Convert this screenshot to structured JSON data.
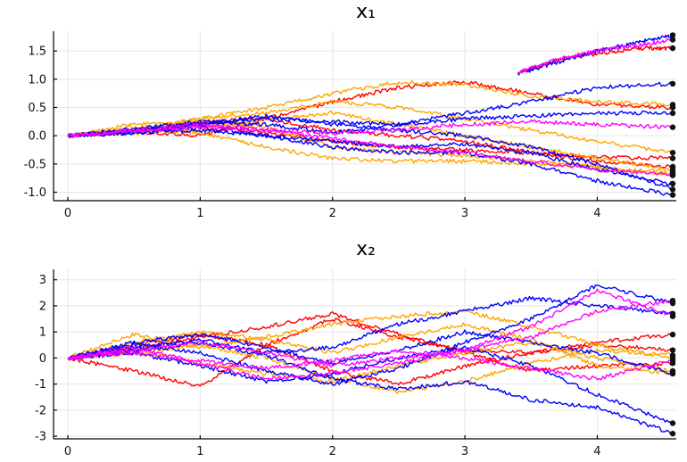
{
  "chart_data": [
    {
      "type": "line",
      "title": "x₁",
      "xlim": [
        0,
        4.57
      ],
      "ylim": [
        -1.15,
        1.85
      ],
      "x_ticks": [
        "0",
        "1",
        "2",
        "3",
        "4"
      ],
      "y_ticks": [
        "-1.0",
        "-0.5",
        "0.0",
        "0.5",
        "1.0",
        "1.5"
      ],
      "grid": true,
      "legend": "none",
      "end_markers": true,
      "series_colors": [
        "#ff0000",
        "#ffa500",
        "#0000ff",
        "#ff00ff"
      ],
      "series": [
        {
          "color": "#ff0000",
          "x": [
            0,
            0.5,
            1,
            1.5,
            2,
            2.5,
            3,
            3.5,
            4,
            4.57
          ],
          "values": [
            0,
            0.08,
            0.0,
            0.3,
            0.6,
            0.85,
            0.95,
            0.75,
            0.55,
            0.5
          ]
        },
        {
          "color": "#ff0000",
          "x": [
            0,
            0.5,
            1,
            1.5,
            2,
            2.5,
            3,
            3.5,
            4,
            4.57
          ],
          "values": [
            0,
            0.1,
            0.2,
            0.05,
            -0.1,
            -0.2,
            -0.25,
            -0.3,
            -0.38,
            -0.4
          ]
        },
        {
          "color": "#ff0000",
          "x": [
            0,
            0.5,
            1,
            1.5,
            2,
            2.5,
            3,
            3.5,
            4,
            4.57
          ],
          "values": [
            0,
            0.05,
            0.25,
            0.3,
            0.1,
            0.0,
            -0.1,
            -0.3,
            -0.45,
            -0.55
          ]
        },
        {
          "color": "#ff0000",
          "x": [
            3.4,
            3.7,
            4,
            4.3,
            4.57
          ],
          "values": [
            1.1,
            1.35,
            1.45,
            1.55,
            1.55
          ]
        },
        {
          "color": "#ffa500",
          "x": [
            0,
            0.5,
            1,
            1.5,
            2,
            2.5,
            3,
            3.5,
            4,
            4.57
          ],
          "values": [
            0,
            0.2,
            0.25,
            0.15,
            -0.2,
            -0.3,
            -0.35,
            -0.45,
            -0.55,
            -0.7
          ]
        },
        {
          "color": "#ffa500",
          "x": [
            0,
            0.5,
            1,
            1.5,
            2,
            2.5,
            3,
            3.5,
            4,
            4.57
          ],
          "values": [
            0,
            0.1,
            0.3,
            0.5,
            0.75,
            0.95,
            0.9,
            0.7,
            0.6,
            0.55
          ]
        },
        {
          "color": "#ffa500",
          "x": [
            0,
            0.5,
            1,
            1.5,
            2,
            2.5,
            3,
            3.5,
            4,
            4.57
          ],
          "values": [
            0,
            0.05,
            0.1,
            0.3,
            0.4,
            0.2,
            0.0,
            -0.2,
            -0.4,
            -0.6
          ]
        },
        {
          "color": "#ffa500",
          "x": [
            0,
            0.5,
            1,
            1.5,
            2,
            2.5,
            3,
            3.5,
            4,
            4.57
          ],
          "values": [
            0,
            0.15,
            0.05,
            -0.2,
            -0.4,
            -0.45,
            -0.45,
            -0.5,
            -0.55,
            -0.65
          ]
        },
        {
          "color": "#ffa500",
          "x": [
            0,
            0.5,
            1,
            1.5,
            2,
            2.5,
            3,
            3.5,
            4,
            4.57
          ],
          "values": [
            0,
            0.1,
            0.3,
            0.4,
            0.6,
            0.5,
            0.3,
            0.1,
            -0.1,
            -0.3
          ]
        },
        {
          "color": "#0000ff",
          "x": [
            0,
            0.5,
            1,
            1.5,
            2,
            2.5,
            3,
            3.5,
            4,
            4.57
          ],
          "values": [
            0,
            0.08,
            0.2,
            0.35,
            0.2,
            0.1,
            0.0,
            -0.2,
            -0.5,
            -0.95
          ]
        },
        {
          "color": "#0000ff",
          "x": [
            0,
            0.5,
            1,
            1.5,
            2,
            2.5,
            3,
            3.5,
            4,
            4.57
          ],
          "values": [
            0,
            0.12,
            0.25,
            0.2,
            0.05,
            0.2,
            0.4,
            0.6,
            0.85,
            0.92
          ]
        },
        {
          "color": "#0000ff",
          "x": [
            0,
            0.5,
            1,
            1.5,
            2,
            2.5,
            3,
            3.5,
            4,
            4.57
          ],
          "values": [
            0,
            0.05,
            0.1,
            0.0,
            -0.2,
            -0.3,
            -0.3,
            -0.5,
            -0.8,
            -1.05
          ]
        },
        {
          "color": "#0000ff",
          "x": [
            0,
            0.5,
            1,
            1.5,
            2,
            2.5,
            3,
            3.5,
            4,
            4.57
          ],
          "values": [
            0,
            0.1,
            0.2,
            0.3,
            0.25,
            0.2,
            0.3,
            0.35,
            0.4,
            0.4
          ]
        },
        {
          "color": "#0000ff",
          "x": [
            3.4,
            3.7,
            4,
            4.3,
            4.57
          ],
          "values": [
            1.1,
            1.3,
            1.5,
            1.65,
            1.78
          ]
        },
        {
          "color": "#0000ff",
          "x": [
            0,
            0.5,
            1,
            1.5,
            2,
            2.5,
            3,
            3.5,
            4,
            4.57
          ],
          "values": [
            0,
            0.05,
            0.15,
            0.0,
            -0.1,
            -0.2,
            -0.15,
            -0.3,
            -0.6,
            -0.85
          ]
        },
        {
          "color": "#ff00ff",
          "x": [
            3.4,
            3.7,
            4,
            4.3,
            4.57
          ],
          "values": [
            1.12,
            1.35,
            1.5,
            1.6,
            1.7
          ]
        },
        {
          "color": "#ff00ff",
          "x": [
            0,
            0.5,
            1,
            1.5,
            2,
            2.5,
            3,
            3.5,
            4,
            4.57
          ],
          "values": [
            0,
            0.08,
            0.15,
            0.1,
            0.05,
            0.1,
            0.2,
            0.25,
            0.2,
            0.15
          ]
        },
        {
          "color": "#ff00ff",
          "x": [
            0,
            0.5,
            1,
            1.5,
            2,
            2.5,
            3,
            3.5,
            4,
            4.57
          ],
          "values": [
            0,
            0.1,
            0.2,
            0.1,
            -0.05,
            -0.2,
            -0.3,
            -0.45,
            -0.6,
            -0.7
          ]
        }
      ]
    },
    {
      "type": "line",
      "title": "x₂",
      "xlim": [
        0,
        4.57
      ],
      "ylim": [
        -3.1,
        3.4
      ],
      "x_ticks": [
        "0",
        "1",
        "2",
        "3",
        "4"
      ],
      "y_ticks": [
        "-3",
        "-2",
        "-1",
        "0",
        "1",
        "2",
        "3"
      ],
      "grid": true,
      "legend": "none",
      "end_markers": true,
      "series_colors": [
        "#ff0000",
        "#ffa500",
        "#0000ff",
        "#ff00ff"
      ],
      "series": [
        {
          "color": "#ff0000",
          "x": [
            0,
            0.5,
            1,
            1.5,
            2,
            2.5,
            3,
            3.5,
            4,
            4.57
          ],
          "values": [
            0,
            -0.5,
            -1.1,
            0.5,
            1.5,
            0.8,
            0.3,
            0.2,
            0.6,
            0.9
          ]
        },
        {
          "color": "#ff0000",
          "x": [
            0,
            0.5,
            1,
            1.5,
            2,
            2.5,
            3,
            3.5,
            4,
            4.57
          ],
          "values": [
            0,
            0.3,
            0.8,
            1.2,
            1.7,
            0.9,
            0.2,
            -0.5,
            -0.3,
            -0.2
          ]
        },
        {
          "color": "#ff0000",
          "x": [
            0,
            0.5,
            1,
            1.5,
            2,
            2.5,
            3,
            3.5,
            4,
            4.57
          ],
          "values": [
            0,
            0.5,
            0.9,
            0.5,
            -0.5,
            -1.0,
            -0.3,
            0.2,
            0.5,
            0.3
          ]
        },
        {
          "color": "#ffa500",
          "x": [
            0,
            0.5,
            1,
            1.5,
            2,
            2.5,
            3,
            3.5,
            4,
            4.57
          ],
          "values": [
            0,
            0.9,
            0.4,
            0.8,
            1.3,
            1.6,
            1.8,
            1.2,
            0.5,
            0.0
          ]
        },
        {
          "color": "#ffa500",
          "x": [
            0,
            0.5,
            1,
            1.5,
            2,
            2.5,
            3,
            3.5,
            4,
            4.57
          ],
          "values": [
            0,
            0.3,
            -0.2,
            -0.6,
            -0.9,
            -0.3,
            0.2,
            0.6,
            0.0,
            -0.5
          ]
        },
        {
          "color": "#ffa500",
          "x": [
            0,
            0.5,
            1,
            1.5,
            2,
            2.5,
            3,
            3.5,
            4,
            4.57
          ],
          "values": [
            0,
            0.6,
            1.0,
            0.7,
            0.2,
            0.8,
            1.3,
            0.7,
            -0.3,
            -0.6
          ]
        },
        {
          "color": "#ffa500",
          "x": [
            0,
            0.5,
            1,
            1.5,
            2,
            2.5,
            3,
            3.5,
            4,
            4.57
          ],
          "values": [
            0,
            0.2,
            0.5,
            0.0,
            -0.8,
            -1.3,
            -0.9,
            -0.2,
            0.3,
            0.1
          ]
        },
        {
          "color": "#0000ff",
          "x": [
            0,
            0.5,
            1,
            1.5,
            2,
            2.5,
            3,
            3.5,
            4,
            4.57
          ],
          "values": [
            0,
            0.5,
            0.2,
            -0.5,
            -1.0,
            -0.4,
            0.6,
            1.5,
            2.8,
            2.1
          ]
        },
        {
          "color": "#0000ff",
          "x": [
            0,
            0.5,
            1,
            1.5,
            2,
            2.5,
            3,
            3.5,
            4,
            4.57
          ],
          "values": [
            0,
            0.3,
            0.6,
            0.1,
            -0.8,
            -1.2,
            -0.9,
            -1.6,
            -1.9,
            -2.9
          ]
        },
        {
          "color": "#0000ff",
          "x": [
            0,
            0.5,
            1,
            1.5,
            2,
            2.5,
            3,
            3.5,
            4,
            4.57
          ],
          "values": [
            0,
            0.4,
            0.7,
            0.2,
            0.4,
            1.3,
            1.8,
            2.3,
            2.0,
            1.7
          ]
        },
        {
          "color": "#0000ff",
          "x": [
            0,
            0.5,
            1,
            1.5,
            2,
            2.5,
            3,
            3.5,
            4,
            4.57
          ],
          "values": [
            0,
            0.2,
            -0.3,
            -0.9,
            -0.6,
            0.0,
            0.4,
            -0.3,
            -1.4,
            -2.5
          ]
        },
        {
          "color": "#0000ff",
          "x": [
            0,
            0.5,
            1,
            1.5,
            2,
            2.5,
            3,
            3.5,
            4,
            4.57
          ],
          "values": [
            0,
            0.6,
            0.9,
            0.4,
            -0.2,
            0.3,
            1.0,
            0.6,
            0.2,
            -0.6
          ]
        },
        {
          "color": "#ff00ff",
          "x": [
            0,
            0.5,
            1,
            1.5,
            2,
            2.5,
            3,
            3.5,
            4,
            4.57
          ],
          "values": [
            0,
            0.4,
            -0.2,
            -0.8,
            -0.6,
            -0.2,
            0.3,
            0.8,
            1.8,
            2.2
          ]
        },
        {
          "color": "#ff00ff",
          "x": [
            0,
            0.5,
            1,
            1.5,
            2,
            2.5,
            3,
            3.5,
            4,
            4.57
          ],
          "values": [
            0,
            0.3,
            0.6,
            0.2,
            -0.3,
            0.0,
            0.3,
            1.2,
            2.6,
            1.6
          ]
        },
        {
          "color": "#ff00ff",
          "x": [
            0,
            0.5,
            1,
            1.5,
            2,
            2.5,
            3,
            3.5,
            4,
            4.57
          ],
          "values": [
            0,
            0.2,
            -0.1,
            -0.4,
            -0.1,
            0.3,
            0.0,
            -0.4,
            -0.8,
            -0.1
          ]
        }
      ]
    }
  ]
}
